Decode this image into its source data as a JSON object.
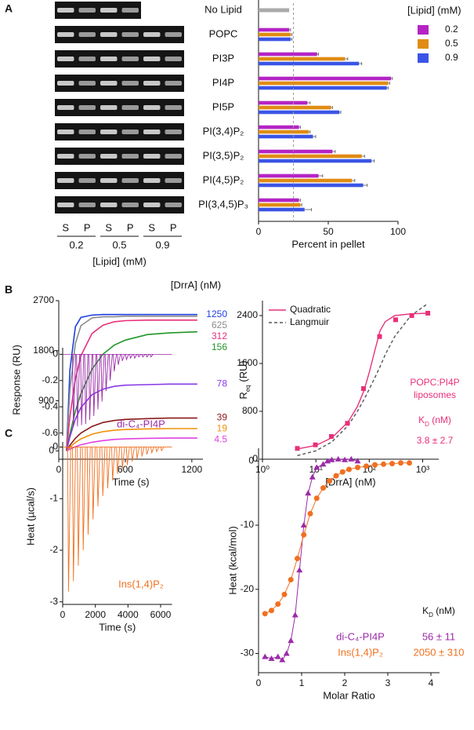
{
  "panel_labels": [
    "A",
    "B",
    "C"
  ],
  "gel": {
    "lanes": [
      "S",
      "P",
      "S",
      "P",
      "S",
      "P"
    ],
    "concentrations": [
      "0.2",
      "0.5",
      "0.9"
    ],
    "x_label": "[Lipid] (mM)"
  },
  "chart_data": [
    {
      "type": "hbar",
      "categories": [
        "No Lipid",
        "POPC",
        "PI3P",
        "PI4P",
        "PI5P",
        "PI(3,4)P₂",
        "PI(3,5)P₂",
        "PI(4,5)P₂",
        "PI(3,4,5)P₃"
      ],
      "legend_title": "[Lipid] (mM)",
      "series": [
        {
          "name": "0.2",
          "color": "#b424c4",
          "values": [
            null,
            22,
            42,
            95,
            35,
            29,
            53,
            43,
            29
          ],
          "errors": [
            null,
            1,
            1,
            1,
            2,
            1,
            2,
            3,
            1
          ]
        },
        {
          "name": "0.5",
          "color": "#e08c14",
          "values": [
            null,
            23,
            62,
            93,
            52,
            36,
            74,
            67,
            30
          ],
          "errors": [
            null,
            1,
            2,
            1,
            1,
            1,
            2,
            2,
            1
          ]
        },
        {
          "name": "0.9",
          "color": "#3a55e6",
          "values": [
            null,
            23,
            72,
            92,
            58,
            39,
            81,
            75,
            33
          ],
          "errors": [
            null,
            1,
            2,
            1,
            1,
            2,
            2,
            3,
            5
          ]
        }
      ],
      "control_values": [
        22,
        null,
        null,
        null,
        null,
        null,
        null,
        null,
        null
      ],
      "control_color": "#aaaaaa",
      "reference_line": 25,
      "xlim": [
        0,
        100
      ],
      "xticks": [
        0,
        50,
        100
      ],
      "x_label": "Percent in pellet"
    },
    {
      "type": "line",
      "title": "[DrrA] (nM)",
      "x": [
        70,
        100,
        150,
        200,
        300,
        400,
        500,
        600,
        800,
        1000,
        1250
      ],
      "series": [
        {
          "name": "1250",
          "color": "#1f3fe0",
          "values": [
            0,
            1450,
            2230,
            2400,
            2440,
            2450,
            2450,
            2450,
            2450,
            2450,
            2450
          ]
        },
        {
          "name": "625",
          "color": "#8c8c8c",
          "values": [
            0,
            1090,
            1930,
            2250,
            2390,
            2410,
            2410,
            2420,
            2420,
            2420,
            2420
          ]
        },
        {
          "name": "312",
          "color": "#e8307a",
          "values": [
            0,
            610,
            1290,
            1710,
            2110,
            2260,
            2320,
            2340,
            2350,
            2350,
            2350
          ]
        },
        {
          "name": "156",
          "color": "#22962a",
          "values": [
            0,
            300,
            710,
            1030,
            1470,
            1740,
            1900,
            1990,
            2090,
            2120,
            2140
          ]
        },
        {
          "name": "78",
          "color": "#8a3ae6",
          "values": [
            0,
            250,
            570,
            780,
            1010,
            1110,
            1160,
            1180,
            1190,
            1200,
            1200
          ]
        },
        {
          "name": "39",
          "color": "#8b1a1a",
          "values": [
            0,
            100,
            225,
            320,
            440,
            510,
            545,
            565,
            580,
            590,
            590
          ]
        },
        {
          "name": "19",
          "color": "#f0900a",
          "values": [
            0,
            66,
            150,
            215,
            300,
            345,
            370,
            383,
            395,
            400,
            400
          ]
        },
        {
          "name": "4.5",
          "color": "#e040e0",
          "values": [
            0,
            32,
            75,
            110,
            155,
            185,
            205,
            215,
            225,
            230,
            230
          ]
        }
      ],
      "xlim": [
        0,
        1300
      ],
      "xticks": [
        0,
        600,
        1200
      ],
      "ylim": [
        -150,
        2700
      ],
      "yticks": [
        0,
        900,
        1800,
        2700
      ],
      "x_label": "Time (s)",
      "y_label": "Response (RU)"
    },
    {
      "type": "scatter",
      "log_x": true,
      "x": [
        4.5,
        9.8,
        19.5,
        39,
        78,
        156,
        312,
        625,
        1250
      ],
      "values": [
        180,
        240,
        380,
        600,
        1180,
        2050,
        2330,
        2400,
        2440
      ],
      "color": "#e8307a",
      "fits": [
        {
          "name": "Quadratic",
          "color": "#e8307a",
          "dashed": false,
          "x": [
            4.5,
            10,
            20,
            40,
            60,
            80,
            100,
            130,
            160,
            200,
            300,
            600,
            1250
          ],
          "values": [
            170,
            230,
            360,
            620,
            880,
            1150,
            1450,
            1850,
            2150,
            2300,
            2400,
            2430,
            2440
          ]
        },
        {
          "name": "Langmuir",
          "color": "#555555",
          "dashed": true,
          "x": [
            4.5,
            10,
            20,
            40,
            60,
            80,
            100,
            130,
            160,
            200,
            300,
            600,
            1250
          ],
          "values": [
            60,
            140,
            290,
            560,
            800,
            1000,
            1170,
            1380,
            1550,
            1750,
            2050,
            2400,
            2600
          ]
        }
      ],
      "annotation": [
        "POPC:PI4P",
        "liposomes"
      ],
      "kd_title": [
        "K",
        "D",
        " (nM)"
      ],
      "kd": "3.8 ± 2.7",
      "xlim": [
        1,
        2000
      ],
      "xticks": [
        {
          "value": 1,
          "label": "10⁰"
        },
        {
          "value": 10,
          "label": "10¹"
        },
        {
          "value": 100,
          "label": "10²"
        },
        {
          "value": 1000,
          "label": "10³"
        }
      ],
      "ylim": [
        0,
        2650
      ],
      "yticks": [
        0,
        800,
        1600,
        2400
      ],
      "x_label": "[DrrA] (nM)",
      "y_label": [
        "R",
        "eq",
        " (RU)"
      ]
    },
    {
      "type": "impulse",
      "label": "di-C₄-PI4P",
      "color": "#9b2aa8",
      "x": [
        600,
        850,
        1100,
        1350,
        1600,
        1850,
        2100,
        2350,
        2600,
        2850,
        3100,
        3350,
        3600,
        3850,
        4100,
        4350,
        4600,
        4850,
        5100,
        5350
      ],
      "values": [
        -0.55,
        -0.55,
        -0.54,
        -0.53,
        -0.5,
        -0.47,
        -0.42,
        -0.36,
        -0.28,
        -0.2,
        -0.13,
        -0.08,
        -0.05,
        -0.04,
        -0.03,
        -0.03,
        -0.02,
        -0.02,
        -0.02,
        -0.02
      ],
      "xlim": [
        0,
        6700
      ],
      "ylim": [
        -0.62,
        0.05
      ],
      "yticks": [
        0,
        -0.2,
        -0.4,
        -0.6
      ]
    },
    {
      "type": "impulse",
      "label": "Ins(1,4)P₂",
      "color": "#f07020",
      "x": [
        300,
        600,
        900,
        1200,
        1500,
        1800,
        2100,
        2400,
        2700,
        3000,
        3300,
        3600,
        3900,
        4200,
        4500,
        4800,
        5100,
        5400,
        5700,
        6000
      ],
      "values": [
        -2.8,
        -2.6,
        -2.3,
        -2.0,
        -1.7,
        -1.4,
        -1.15,
        -0.95,
        -0.8,
        -0.65,
        -0.52,
        -0.42,
        -0.35,
        -0.28,
        -0.22,
        -0.18,
        -0.14,
        -0.11,
        -0.09,
        -0.07
      ],
      "xlim": [
        0,
        6700
      ],
      "xticks": [
        0,
        2000,
        4000,
        6000
      ],
      "ylim": [
        -3.05,
        0.1
      ],
      "yticks": [
        0,
        -1,
        -2,
        -3
      ],
      "x_label": "Time (s)",
      "y_label": "Heat (µcal/s)"
    },
    {
      "type": "scatter",
      "kd_title": [
        "K",
        "D",
        " (nM)"
      ],
      "series": [
        {
          "name": "di-C₄-PI4P",
          "kd": "56 ± 11",
          "color": "#9b2aa8",
          "marker": "triangle",
          "x": [
            0.15,
            0.3,
            0.45,
            0.55,
            0.65,
            0.75,
            0.85,
            0.95,
            1.05,
            1.15,
            1.25,
            1.35,
            1.5,
            1.6,
            1.7,
            1.85,
            2.0,
            2.15,
            2.3
          ],
          "values": [
            -30.5,
            -30.8,
            -30.5,
            -31,
            -30,
            -28,
            -24,
            -17,
            -10,
            -5,
            -2.5,
            -1,
            -0.5,
            0,
            0.2,
            0.3,
            0.2,
            0.3,
            0
          ]
        },
        {
          "name": "Ins(1,4)P₂",
          "kd": "2050 ± 310",
          "color": "#f07020",
          "marker": "circle",
          "x": [
            0.15,
            0.3,
            0.45,
            0.6,
            0.75,
            0.9,
            1.05,
            1.2,
            1.35,
            1.5,
            1.65,
            1.8,
            1.95,
            2.1,
            2.3,
            2.5,
            2.7,
            2.9,
            3.1,
            3.3,
            3.5
          ],
          "values": [
            -23.8,
            -23.3,
            -22.3,
            -20.8,
            -18.5,
            -15.2,
            -11.5,
            -8.2,
            -5.8,
            -4.2,
            -3.1,
            -2.3,
            -1.7,
            -1.3,
            -1.0,
            -0.8,
            -0.6,
            -0.5,
            -0.4,
            -0.3,
            -0.3
          ]
        }
      ],
      "xlim": [
        0,
        4.2
      ],
      "xticks": [
        0,
        1,
        2,
        3,
        4
      ],
      "ylim": [
        -33,
        2
      ],
      "yticks": [
        0,
        -10,
        -20,
        -30
      ],
      "x_label": "Molar Ratio",
      "y_label": "Heat (kcal/mol)"
    }
  ]
}
